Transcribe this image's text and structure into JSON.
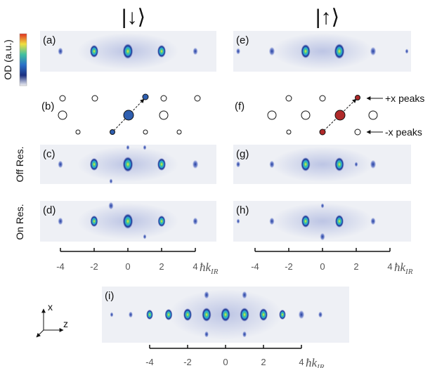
{
  "columns": [
    {
      "state": "|↓⟩"
    },
    {
      "state": "|↑⟩"
    }
  ],
  "colorbar_label": "OD (a.u.)",
  "panels": [
    "(a)",
    "(b)",
    "(c)",
    "(d)",
    "(e)",
    "(f)",
    "(g)",
    "(h)",
    "(i)"
  ],
  "annotations": {
    "plus": "+x peaks",
    "minus": "-x peaks"
  },
  "row_labels": {
    "off": "Off Res.",
    "on": "On Res."
  },
  "axis": {
    "ticks": [
      -4,
      -2,
      0,
      2,
      4
    ],
    "unit": "ħk",
    "unit_sub": "IR"
  },
  "axes_icon": {
    "x": "x",
    "z": "z"
  }
}
